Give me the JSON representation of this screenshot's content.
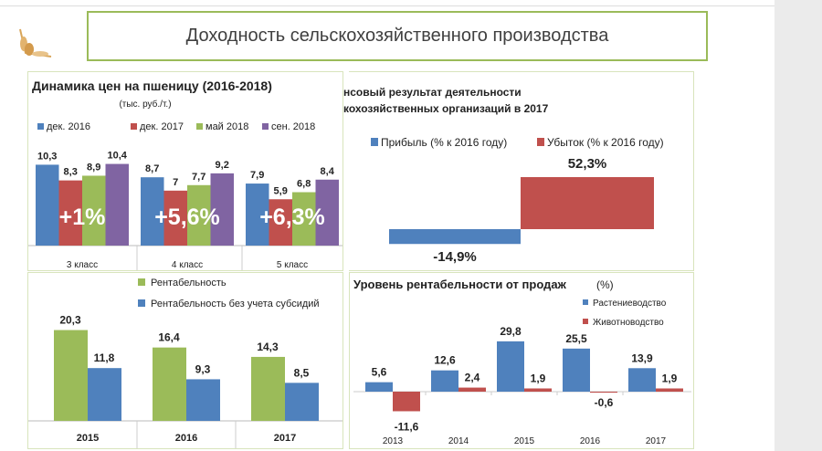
{
  "header": {
    "title": "Доходность сельскохозяйственного производства"
  },
  "colors": {
    "blue": "#4f81bd",
    "red": "#c0504d",
    "green": "#9bbb59",
    "purple": "#8064a2",
    "frame": "#9bbb59"
  },
  "chart_data": [
    {
      "type": "bar",
      "title": "Динамика цен на пшеницу (2016-2018)",
      "subtitle": "(тыс. руб./т.)",
      "categories": [
        "3 класс",
        "4 класс",
        "5 класс"
      ],
      "series": [
        {
          "name": "дек. 2016",
          "values": [
            10.3,
            8.7,
            7.9
          ],
          "labels": [
            "10,3",
            "8,7",
            "7,9"
          ]
        },
        {
          "name": "дек. 2017",
          "values": [
            8.3,
            7,
            5.9
          ],
          "labels": [
            "8,3",
            "7",
            "5,9"
          ]
        },
        {
          "name": "май 2018",
          "values": [
            8.9,
            7.7,
            6.8
          ],
          "labels": [
            "8,9",
            "7,7",
            "6,8"
          ]
        },
        {
          "name": "сен. 2018",
          "values": [
            10.4,
            9.2,
            8.4
          ],
          "labels": [
            "10,4",
            "9,2",
            "8,4"
          ]
        }
      ],
      "annotations": [
        "+1%",
        "+5,6%",
        "+6,3%"
      ],
      "legend": "top"
    },
    {
      "type": "bar",
      "title_lines": [
        "нсовый результат деятельности",
        "кохозяйственных организаций в 2017"
      ],
      "series": [
        {
          "name": "Прибыль (% к 2016 году)",
          "values": [
            -14.9
          ],
          "labels": [
            "-14,9%"
          ]
        },
        {
          "name": "Убыток (% к 2016 году)",
          "values": [
            52.3
          ],
          "labels": [
            "52,3%"
          ]
        }
      ],
      "legend": "top"
    },
    {
      "type": "bar",
      "categories": [
        "2015",
        "2016",
        "2017"
      ],
      "series": [
        {
          "name": "Рентабельность",
          "values": [
            20.3,
            16.4,
            14.3
          ],
          "labels": [
            "20,3",
            "16,4",
            "14,3"
          ]
        },
        {
          "name": "Рентабельность без учета субсидий",
          "values": [
            11.8,
            9.3,
            8.5
          ],
          "labels": [
            "11,8",
            "9,3",
            "8,5"
          ]
        }
      ],
      "legend": "top"
    },
    {
      "type": "bar",
      "title": "Уровень рентабельности от продаж",
      "title_unit": "(%)",
      "categories": [
        "2013",
        "2014",
        "2015",
        "2016",
        "2017"
      ],
      "series": [
        {
          "name": "Растениеводство",
          "values": [
            5.6,
            12.6,
            29.8,
            25.5,
            13.9
          ],
          "labels": [
            "5,6",
            "12,6",
            "29,8",
            "25,5",
            "13,9"
          ]
        },
        {
          "name": "Животноводство",
          "values": [
            -11.6,
            2.4,
            1.9,
            -0.6,
            1.9
          ],
          "labels": [
            "-11,6",
            "2,4",
            "1,9",
            "-0,6",
            "1,9"
          ]
        }
      ],
      "legend": "top-right"
    }
  ]
}
